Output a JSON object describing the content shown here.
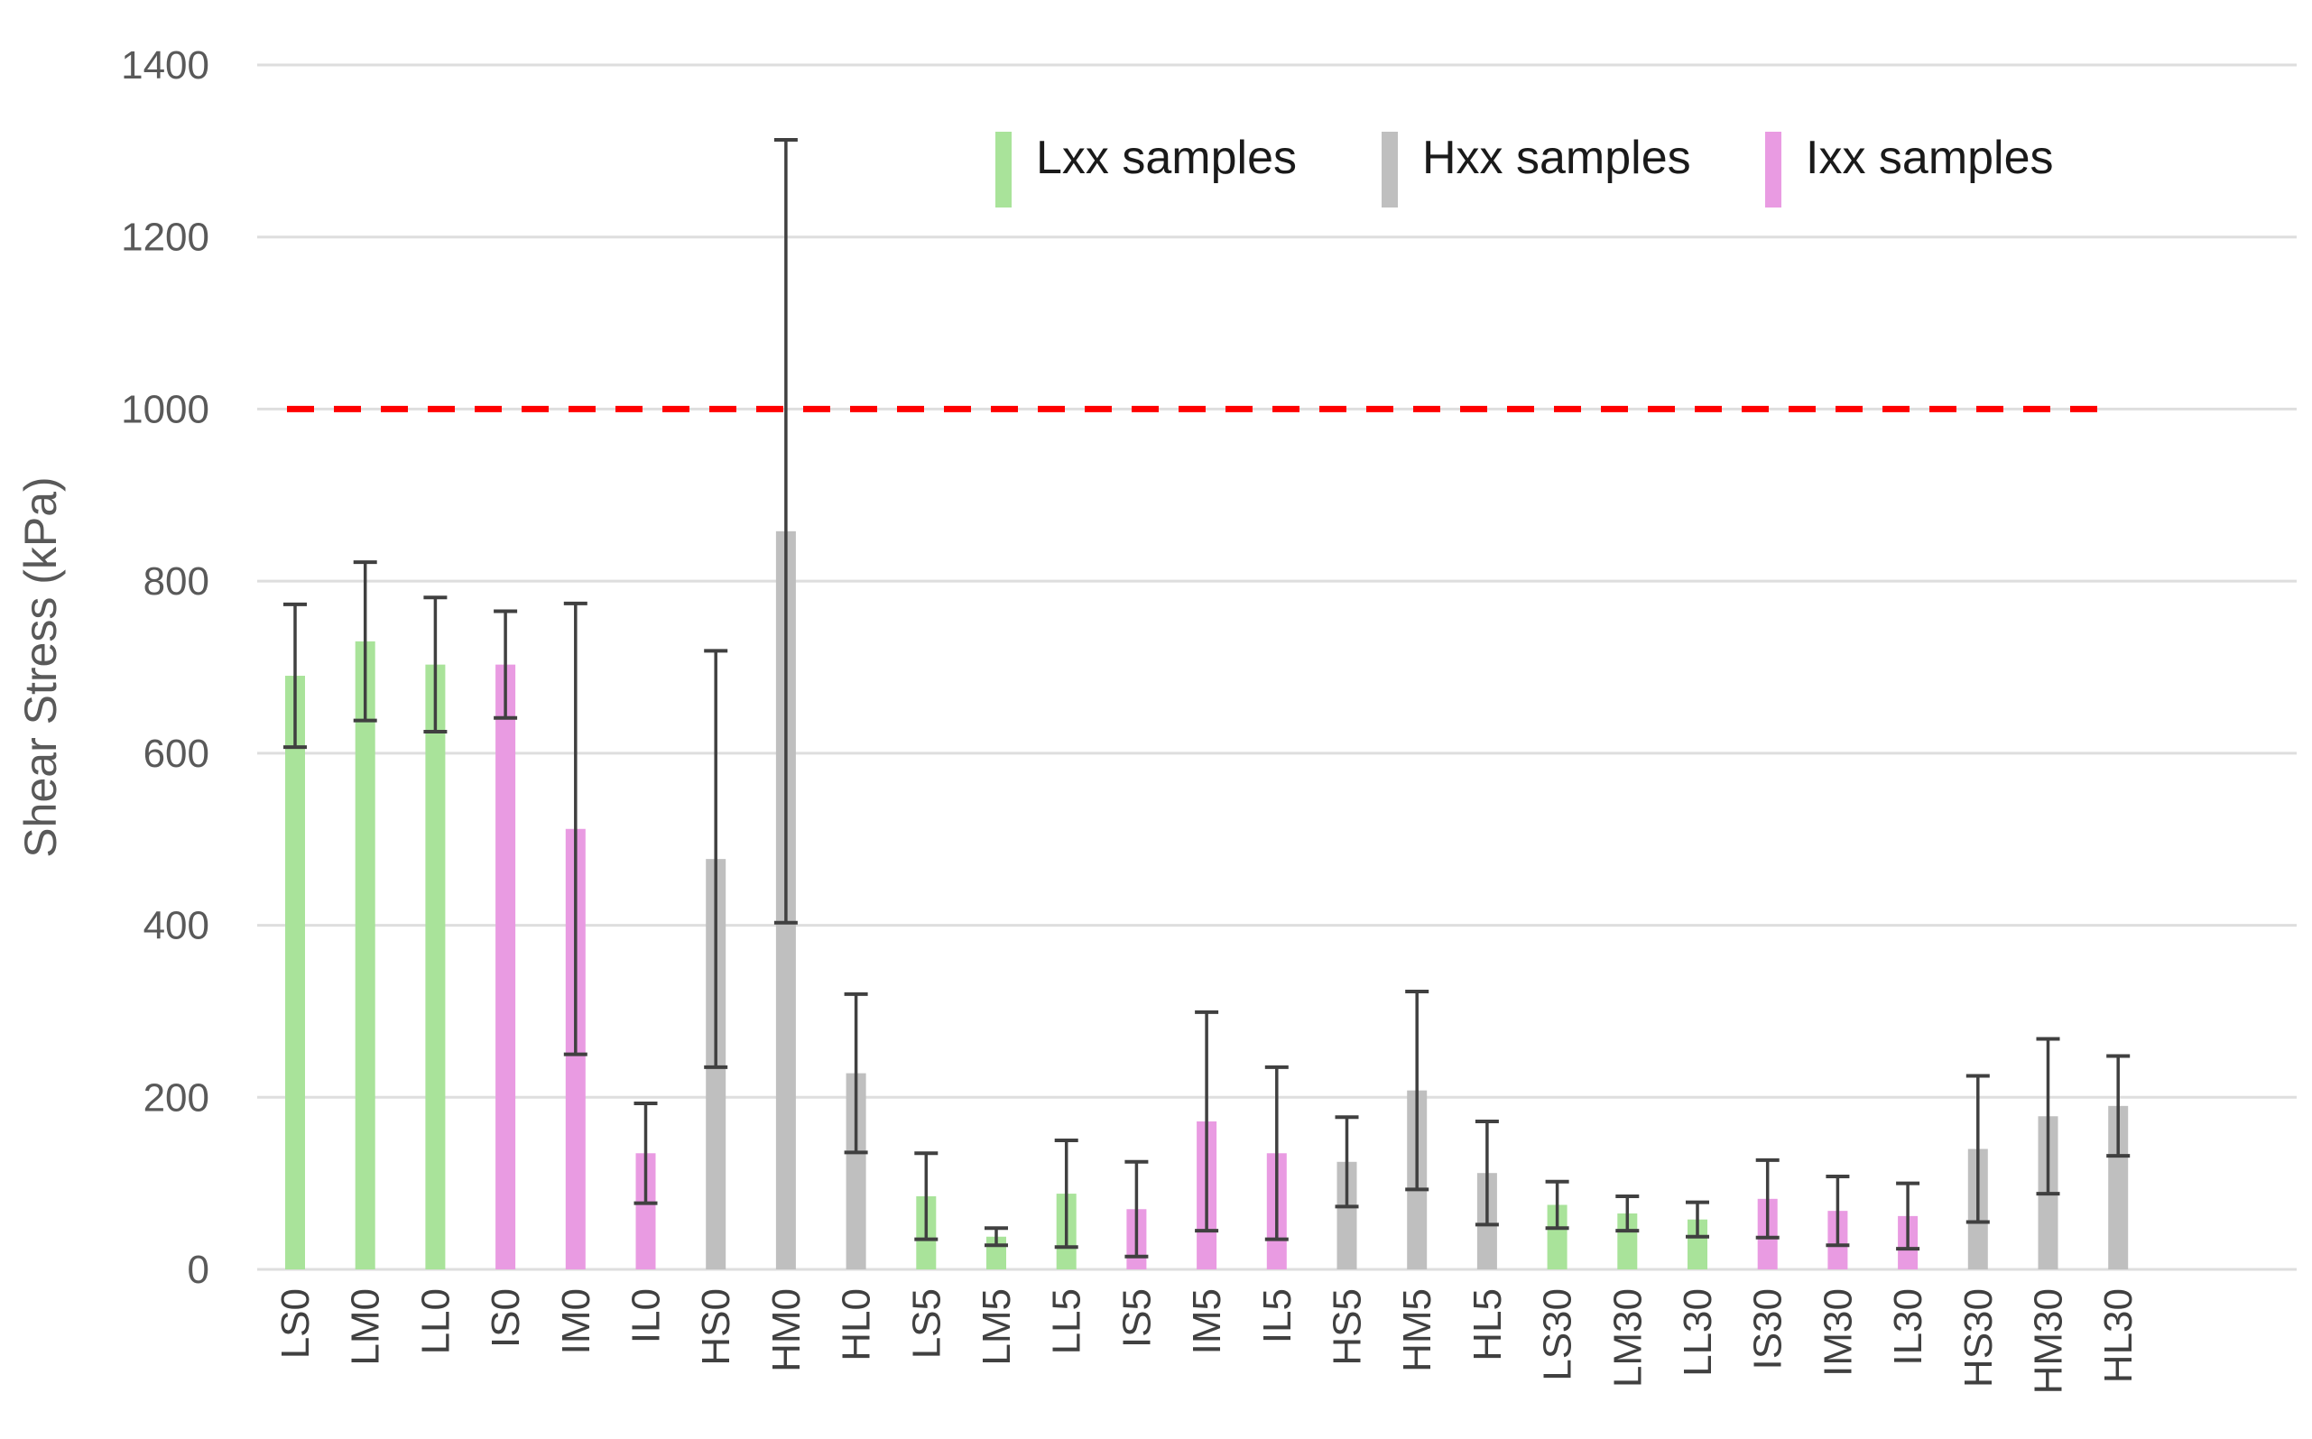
{
  "chart_data": {
    "type": "bar",
    "title": "",
    "xlabel": "",
    "ylabel": "Shear Stress (kPa)",
    "ylim": [
      0,
      1400
    ],
    "yticks": [
      0,
      200,
      400,
      600,
      800,
      1000,
      1200,
      1400
    ],
    "grid": true,
    "legend_position": "top-right",
    "reference_line": {
      "y": 1000,
      "style": "dashed",
      "color": "#ff0000"
    },
    "groups": [
      {
        "key": "L",
        "name": "Lxx samples",
        "color": "#a9e39a"
      },
      {
        "key": "H",
        "name": "Hxx samples",
        "color": "#bfbfbf"
      },
      {
        "key": "I",
        "name": "Ixx samples",
        "color": "#e99be2"
      }
    ],
    "categories": [
      "LS0",
      "LM0",
      "LL0",
      "IS0",
      "IM0",
      "IL0",
      "HS0",
      "HM0",
      "HL0",
      "LS5",
      "LM5",
      "LL5",
      "IS5",
      "IM5",
      "IL5",
      "HS5",
      "HM5",
      "HL5",
      "LS30",
      "LM30",
      "LL30",
      "IS30",
      "IM30",
      "IL30",
      "HS30",
      "HM30",
      "HL30"
    ],
    "values": [
      690,
      730,
      703,
      703,
      512,
      135,
      477,
      858,
      228,
      85,
      38,
      88,
      70,
      172,
      135,
      125,
      208,
      112,
      75,
      65,
      58,
      82,
      68,
      62,
      140,
      178,
      190
    ],
    "errors": [
      83,
      92,
      78,
      62,
      262,
      58,
      242,
      455,
      92,
      50,
      10,
      62,
      55,
      127,
      100,
      52,
      115,
      60,
      27,
      20,
      20,
      45,
      40,
      38,
      85,
      90,
      58
    ],
    "bar_groups": [
      "L",
      "L",
      "L",
      "I",
      "I",
      "I",
      "H",
      "H",
      "H",
      "L",
      "L",
      "L",
      "I",
      "I",
      "I",
      "H",
      "H",
      "H",
      "L",
      "L",
      "L",
      "I",
      "I",
      "I",
      "H",
      "H",
      "H"
    ]
  }
}
